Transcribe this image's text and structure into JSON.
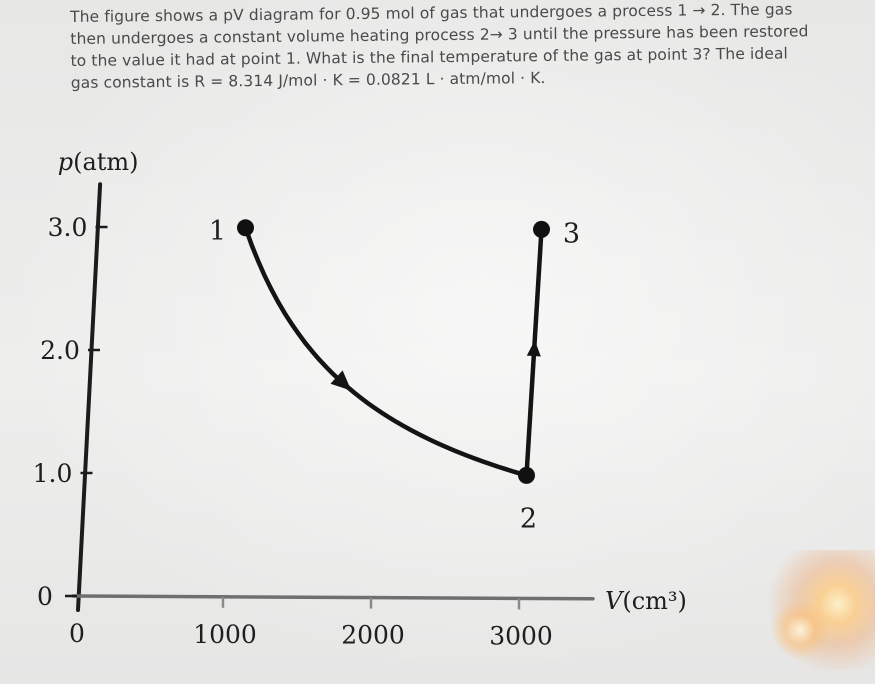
{
  "question": "The figure shows a pV diagram for 0.95 mol of gas that undergoes a process 1 → 2. The gas then undergoes a constant volume heating process 2→ 3 until the pressure has been restored to the value it had at point 1. What is the final temperature of the gas at point 3? The ideal gas constant is R = 8.314 J/mol · K = 0.0821 L · atm/mol · K.",
  "chart_data": {
    "type": "line",
    "ylabel": "p(atm)",
    "xlabel": "V(cm³)",
    "x_ticks": [
      0,
      1000,
      2000,
      3000
    ],
    "x_tick_labels": [
      "0",
      "1000",
      "2000",
      "3000"
    ],
    "y_ticks": [
      0,
      1.0,
      2.0,
      3.0
    ],
    "y_tick_labels": [
      "0",
      "1.0",
      "2.0",
      "3.0"
    ],
    "xlim": [
      0,
      3500
    ],
    "ylim": [
      0,
      3.6
    ],
    "points": [
      {
        "label": "1",
        "V": 1000,
        "p": 3.0
      },
      {
        "label": "2",
        "V": 3000,
        "p": 1.0
      },
      {
        "label": "3",
        "V": 3000,
        "p": 3.0
      }
    ],
    "processes": [
      {
        "from": "1",
        "to": "2",
        "shape": "curve"
      },
      {
        "from": "2",
        "to": "3",
        "shape": "constant volume"
      }
    ]
  }
}
